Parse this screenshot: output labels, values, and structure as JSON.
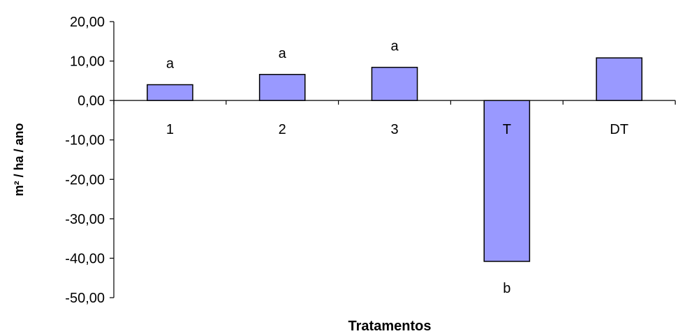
{
  "chart_data": {
    "type": "bar",
    "title": "",
    "xlabel": "Tratamentos",
    "ylabel": "m² / ha / ano",
    "categories": [
      "1",
      "2",
      "3",
      "T",
      "DT"
    ],
    "values": [
      4.0,
      6.6,
      8.4,
      -40.8,
      10.8
    ],
    "annotations": [
      "a",
      "a",
      "a",
      "b",
      ""
    ],
    "ylim": [
      -50,
      20
    ],
    "yticks": [
      20,
      10,
      0,
      -10,
      -20,
      -30,
      -40,
      -50
    ],
    "ytick_labels": [
      "20,00",
      "10,00",
      "0,00",
      "-10,00",
      "-20,00",
      "-30,00",
      "-40,00",
      "-50,00"
    ],
    "grid": false,
    "legend": "none",
    "bar_color": "#9999ff",
    "bar_edge_color": "#000000"
  }
}
